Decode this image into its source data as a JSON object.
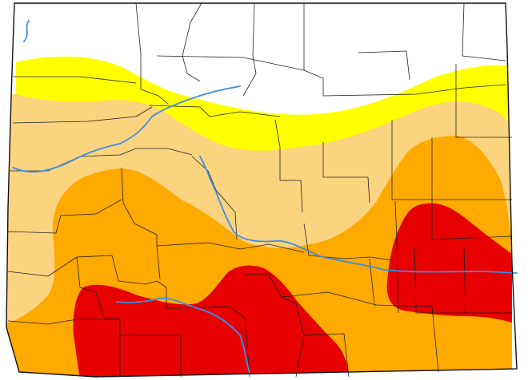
{
  "map": {
    "region": "Colorado",
    "drought_categories": [
      {
        "id": "none",
        "color": "#ffffff"
      },
      {
        "id": "D0",
        "color": "#ffff00"
      },
      {
        "id": "D1",
        "color": "#fcd37f"
      },
      {
        "id": "D2",
        "color": "#ffaa00"
      },
      {
        "id": "D3",
        "color": "#e60000"
      }
    ],
    "rivers": {
      "color": "#3b8ee8"
    },
    "border_color": "#222222"
  }
}
